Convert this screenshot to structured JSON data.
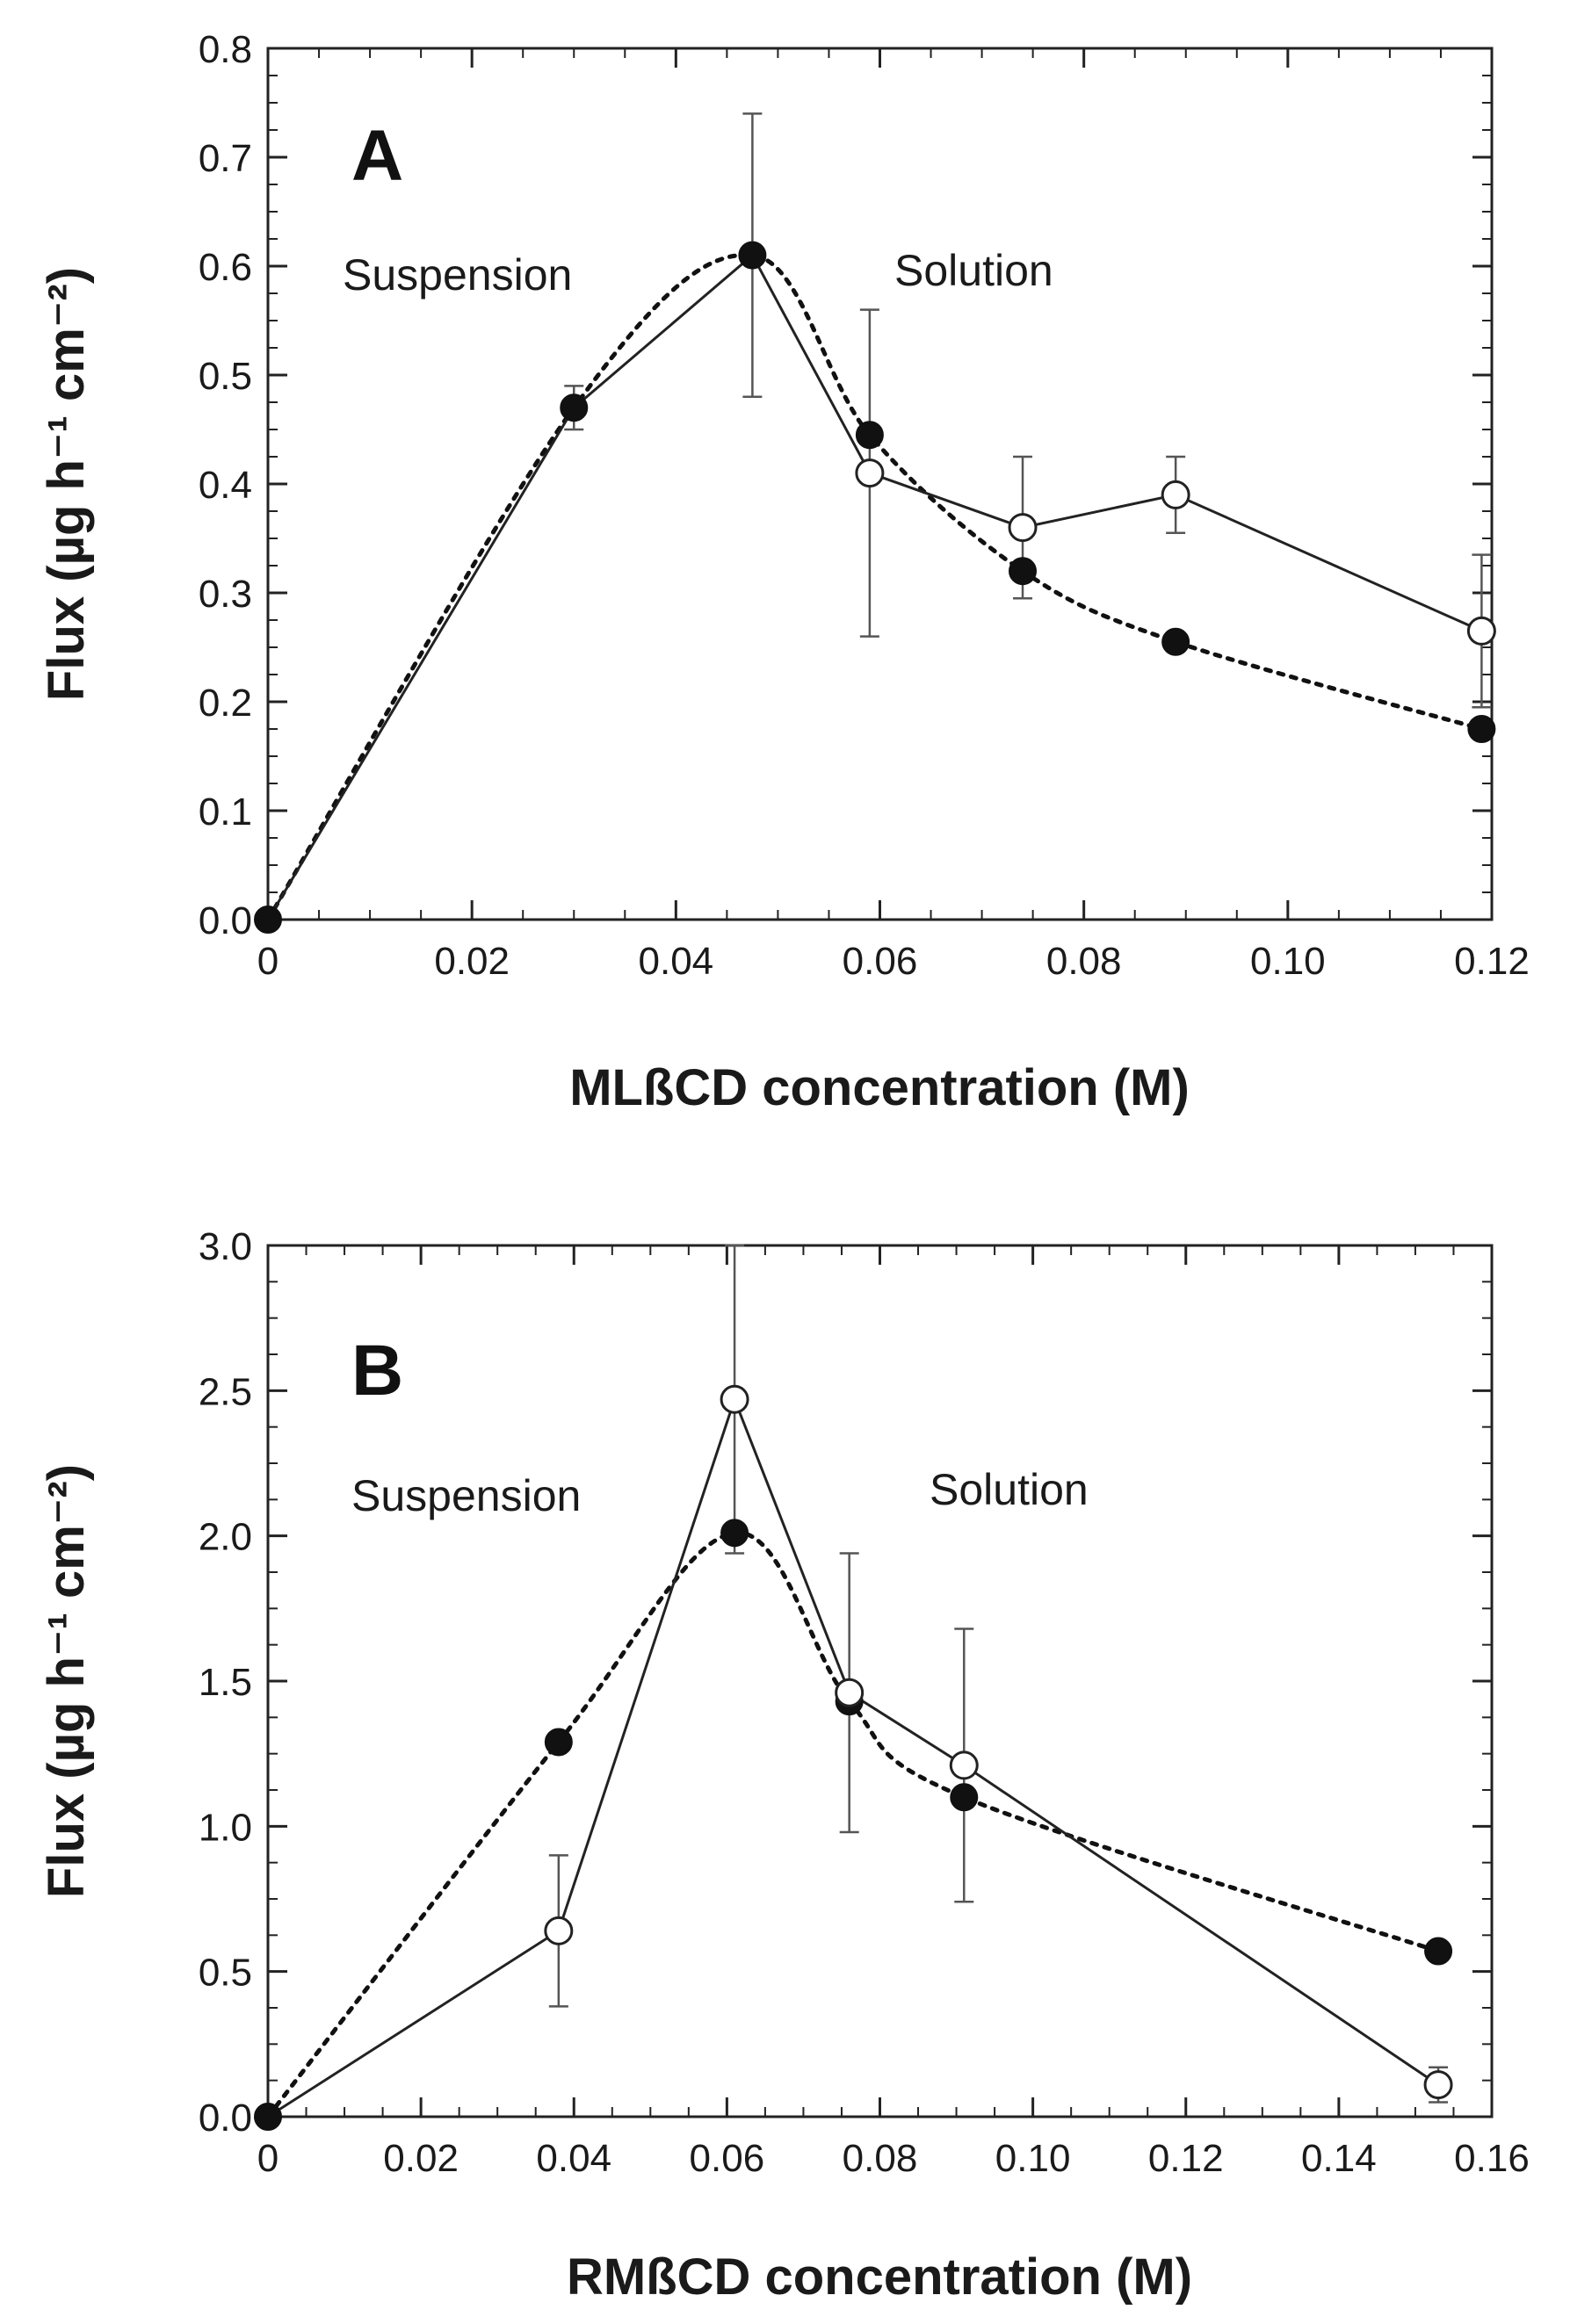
{
  "chart_data": [
    {
      "type": "line",
      "panel_label": "A",
      "xlabel": "MLßCD concentration (M)",
      "ylabel": "Flux (µg h⁻¹ cm⁻²)",
      "xlim": [
        0,
        0.12
      ],
      "ylim": [
        0,
        0.8
      ],
      "xticks": [
        "0",
        "0.02",
        "0.04",
        "0.06",
        "0.08",
        "0.10",
        "0.12"
      ],
      "yticks": [
        "0.0",
        "0.1",
        "0.2",
        "0.3",
        "0.4",
        "0.5",
        "0.6",
        "0.7",
        "0.8"
      ],
      "annotations": [
        "Suspension",
        "Solution"
      ],
      "series": [
        {
          "marker": "open-circle",
          "line": "solid",
          "x": [
            0,
            0.03,
            0.0475,
            0.059,
            0.074,
            0.089,
            0.119
          ],
          "y": [
            0,
            0.47,
            0.61,
            0.41,
            0.36,
            0.39,
            0.265
          ],
          "yerr": [
            0,
            0.02,
            0.13,
            0.15,
            0.065,
            0.035,
            0.07
          ],
          "hollow": [
            false,
            false,
            false,
            true,
            true,
            true,
            true
          ]
        },
        {
          "marker": "filled-circle",
          "line": "dotted",
          "x": [
            0,
            0.03,
            0.0475,
            0.059,
            0.074,
            0.089,
            0.119
          ],
          "y": [
            0,
            0.47,
            0.61,
            0.445,
            0.32,
            0.255,
            0.175
          ]
        }
      ]
    },
    {
      "type": "line",
      "panel_label": "B",
      "xlabel": "RMßCD concentration (M)",
      "ylabel": "Flux (µg h⁻¹ cm⁻²)",
      "xlim": [
        0,
        0.16
      ],
      "ylim": [
        0,
        3.0
      ],
      "xticks": [
        "0",
        "0.02",
        "0.04",
        "0.06",
        "0.08",
        "0.10",
        "0.12",
        "0.14",
        "0.16"
      ],
      "yticks": [
        "0.0",
        "0.5",
        "1.0",
        "1.5",
        "2.0",
        "2.5",
        "3.0"
      ],
      "annotations": [
        "Suspension",
        "Solution"
      ],
      "series": [
        {
          "marker": "open-circle",
          "line": "solid",
          "x": [
            0,
            0.038,
            0.061,
            0.076,
            0.091,
            0.153
          ],
          "y": [
            0,
            0.64,
            2.47,
            1.46,
            1.21,
            0.11
          ],
          "yerr": [
            0,
            0.26,
            0.53,
            0.48,
            0.47,
            0.06
          ],
          "hollow": [
            false,
            true,
            true,
            true,
            true,
            true
          ]
        },
        {
          "marker": "filled-circle",
          "line": "dotted",
          "x": [
            0,
            0.038,
            0.061,
            0.076,
            0.091,
            0.153
          ],
          "y": [
            0,
            1.29,
            2.01,
            1.43,
            1.1,
            0.57
          ]
        }
      ]
    }
  ]
}
